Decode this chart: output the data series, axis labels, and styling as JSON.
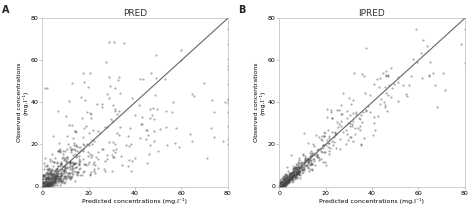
{
  "panel_A_title": "PRED",
  "panel_B_title": "IPRED",
  "panel_A_label": "A",
  "panel_B_label": "B",
  "xlabel": "Predicted concentrations (mg.l⁻¹)",
  "ylabel": "Observed concentrations\n(mg.l⁻¹)",
  "xlim": [
    0,
    80
  ],
  "ylim": [
    0,
    80
  ],
  "xticks": [
    0,
    20,
    40,
    60,
    80
  ],
  "yticks": [
    0,
    20,
    40,
    60,
    80
  ],
  "scatter_color": "#444444",
  "scatter_alpha": 0.45,
  "scatter_size": 2.5,
  "line_color": "#666666",
  "line_width": 0.8,
  "background_color": "#ffffff",
  "n_points": 700
}
